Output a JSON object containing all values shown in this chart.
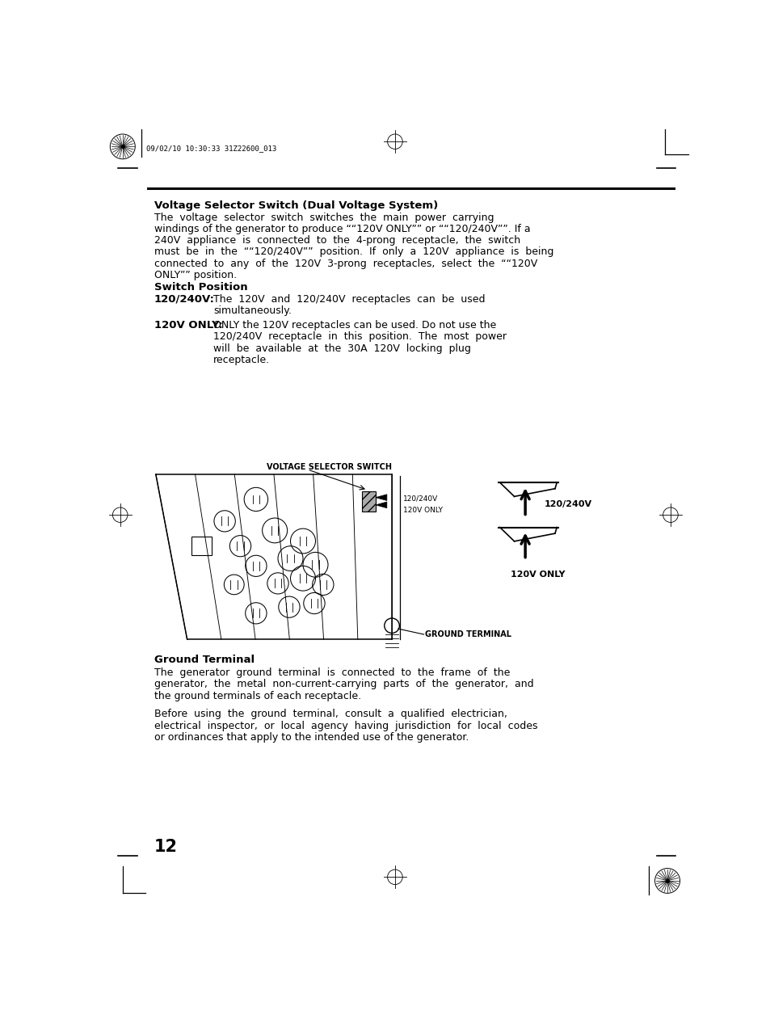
{
  "bg_color": "#ffffff",
  "page_width": 9.54,
  "page_height": 12.61,
  "header_timestamp": "09/02/10 10:30:33 31Z22600_013",
  "title1_bold": "Voltage Selector Switch (Dual Voltage System)",
  "para1_lines": [
    "The  voltage  selector  switch  switches  the  main  power  carrying",
    "windings of the generator to produce ““120V ONLY”” or ““120/240V””. If a",
    "240V  appliance  is  connected  to  the  4-prong  receptacle,  the  switch",
    "must  be  in  the  ““120/240V””  position.  If  only  a  120V  appliance  is  being",
    "connected  to  any  of  the  120V  3-prong  receptacles,  select  the  ““120V",
    "ONLY”” position."
  ],
  "switch_pos_title": "Switch Position",
  "sp1_label": "120/240V:",
  "sp1_lines": [
    "The  120V  and  120/240V  receptacles  can  be  used",
    "simultaneously."
  ],
  "sp2_label": "120V ONLY:",
  "sp2_lines": [
    "ONLY the 120V receptacles can be used. Do not use the",
    "120/240V  receptacle  in  this  position.  The  most  power",
    "will  be  available  at  the  30A  120V  locking  plug",
    "receptacle."
  ],
  "diagram_label": "VOLTAGE SELECTOR SWITCH",
  "label_120_240v_left": "120/240V",
  "label_120v_only_left": "120V ONLY",
  "label_120_240v_right": "120/240V",
  "label_120v_only_right": "120V ONLY",
  "label_ground": "GROUND TERMINAL",
  "ground_title": "Ground Terminal",
  "ground_para1_lines": [
    "The  generator  ground  terminal  is  connected  to  the  frame  of  the",
    "generator,  the  metal  non-current-carrying  parts  of  the  generator,  and",
    "the ground terminals of each receptacle."
  ],
  "ground_para2_lines": [
    "Before  using  the  ground  terminal,  consult  a  qualified  electrician,",
    "electrical  inspector,  or  local  agency  having  jurisdiction  for  local  codes",
    "or ordinances that apply to the intended use of the generator."
  ],
  "page_number": "12"
}
